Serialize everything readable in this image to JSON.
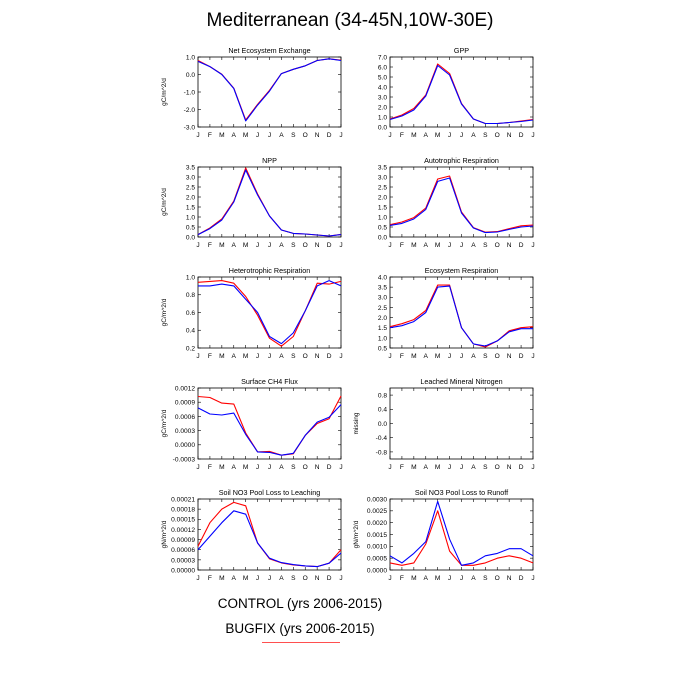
{
  "title": "Mediterranean (34-45N,10W-30E)",
  "legend": {
    "control_label": "CONTROL (yrs 2006-2015)",
    "bugfix_label": "BUGFIX (yrs 2006-2015)"
  },
  "colors": {
    "control": "#0000ff",
    "bugfix": "#ff0000",
    "legend_swatch": "#ff4f4f"
  },
  "x_tick_labels": [
    "J",
    "F",
    "M",
    "A",
    "M",
    "J",
    "J",
    "A",
    "S",
    "O",
    "N",
    "D",
    "J"
  ],
  "chart_data": [
    {
      "type": "line",
      "title": "Net Ecosystem Exchange",
      "ylabel": "gC/m^2/d",
      "ylim": [
        -3.0,
        1.0
      ],
      "yticks": [
        "1.0",
        "0.0",
        "-1.0",
        "-2.0",
        "-3.0"
      ],
      "ytick_values": [
        1.0,
        0.0,
        -1.0,
        -2.0,
        -3.0
      ],
      "series": [
        {
          "key": "control",
          "values": [
            0.75,
            0.45,
            0.0,
            -0.8,
            -2.65,
            -1.75,
            -0.95,
            0.05,
            0.3,
            0.5,
            0.8,
            0.9,
            0.8
          ]
        },
        {
          "key": "bugfix",
          "values": [
            0.8,
            0.45,
            0.02,
            -0.78,
            -2.6,
            -1.7,
            -0.9,
            0.05,
            0.3,
            0.5,
            0.8,
            0.9,
            0.82
          ]
        }
      ]
    },
    {
      "type": "line",
      "title": "GPP",
      "ylabel": "",
      "ylim": [
        0.0,
        7.0
      ],
      "yticks": [
        "7.0",
        "6.0",
        "5.0",
        "4.0",
        "3.0",
        "2.0",
        "1.0",
        "0.0"
      ],
      "ytick_values": [
        7,
        6,
        5,
        4,
        3,
        2,
        1,
        0
      ],
      "series": [
        {
          "key": "control",
          "values": [
            0.75,
            1.1,
            1.7,
            3.1,
            6.15,
            5.2,
            2.3,
            0.8,
            0.35,
            0.35,
            0.45,
            0.55,
            0.7
          ]
        },
        {
          "key": "bugfix",
          "values": [
            0.8,
            1.2,
            1.85,
            3.2,
            6.3,
            5.35,
            2.35,
            0.8,
            0.35,
            0.35,
            0.45,
            0.6,
            0.75
          ]
        }
      ]
    },
    {
      "type": "line",
      "title": "NPP",
      "ylabel": "gC/m^2/d",
      "ylim": [
        0.0,
        3.5
      ],
      "yticks": [
        "3.5",
        "3.0",
        "2.5",
        "2.0",
        "1.5",
        "1.0",
        "0.5",
        "0.0"
      ],
      "ytick_values": [
        3.5,
        3.0,
        2.5,
        2.0,
        1.5,
        1.0,
        0.5,
        0.0
      ],
      "series": [
        {
          "key": "control",
          "values": [
            0.12,
            0.42,
            0.85,
            1.75,
            3.35,
            2.1,
            1.05,
            0.35,
            0.18,
            0.15,
            0.1,
            0.05,
            0.12
          ]
        },
        {
          "key": "bugfix",
          "values": [
            0.12,
            0.45,
            0.9,
            1.8,
            3.45,
            2.15,
            1.05,
            0.35,
            0.18,
            0.15,
            0.1,
            0.05,
            0.13
          ]
        }
      ]
    },
    {
      "type": "line",
      "title": "Autotrophic Respiration",
      "ylabel": "",
      "ylim": [
        0.0,
        3.5
      ],
      "yticks": [
        "3.5",
        "3.0",
        "2.5",
        "2.0",
        "1.5",
        "1.0",
        "0.5",
        "0.0"
      ],
      "ytick_values": [
        3.5,
        3.0,
        2.5,
        2.0,
        1.5,
        1.0,
        0.5,
        0.0
      ],
      "series": [
        {
          "key": "control",
          "values": [
            0.58,
            0.68,
            0.9,
            1.38,
            2.78,
            2.95,
            1.2,
            0.45,
            0.22,
            0.25,
            0.38,
            0.5,
            0.55
          ]
        },
        {
          "key": "bugfix",
          "values": [
            0.62,
            0.75,
            0.97,
            1.45,
            2.9,
            3.05,
            1.25,
            0.47,
            0.24,
            0.27,
            0.42,
            0.56,
            0.6
          ]
        }
      ]
    },
    {
      "type": "line",
      "title": "Heterotrophic Respiration",
      "ylabel": "gC/m^2/d",
      "ylim": [
        0.2,
        1.0
      ],
      "yticks": [
        "1.0",
        "0.8",
        "0.6",
        "0.4",
        "0.2"
      ],
      "ytick_values": [
        1.0,
        0.8,
        0.6,
        0.4,
        0.2
      ],
      "series": [
        {
          "key": "control",
          "values": [
            0.9,
            0.9,
            0.92,
            0.9,
            0.75,
            0.6,
            0.33,
            0.25,
            0.37,
            0.62,
            0.9,
            0.96,
            0.9
          ]
        },
        {
          "key": "bugfix",
          "values": [
            0.94,
            0.95,
            0.96,
            0.93,
            0.78,
            0.57,
            0.31,
            0.22,
            0.33,
            0.62,
            0.93,
            0.92,
            0.95
          ]
        }
      ]
    },
    {
      "type": "line",
      "title": "Ecosystem Respiration",
      "ylabel": "",
      "ylim": [
        0.5,
        4.0
      ],
      "yticks": [
        "4.0",
        "3.5",
        "3.0",
        "2.5",
        "2.0",
        "1.5",
        "1.0",
        "0.5"
      ],
      "ytick_values": [
        4.0,
        3.5,
        3.0,
        2.5,
        2.0,
        1.5,
        1.0,
        0.5
      ],
      "series": [
        {
          "key": "control",
          "values": [
            1.5,
            1.6,
            1.8,
            2.25,
            3.5,
            3.55,
            1.5,
            0.7,
            0.6,
            0.85,
            1.3,
            1.45,
            1.45
          ]
        },
        {
          "key": "bugfix",
          "values": [
            1.55,
            1.7,
            1.9,
            2.35,
            3.6,
            3.6,
            1.5,
            0.7,
            0.55,
            0.85,
            1.35,
            1.5,
            1.55
          ]
        }
      ]
    },
    {
      "type": "line",
      "title": "Surface CH4 Flux",
      "ylabel": "gC/m^2/d",
      "ylim": [
        -0.0003,
        0.0012
      ],
      "yticks": [
        "0.0012",
        "0.0009",
        "0.0006",
        "0.0003",
        "0.0000",
        "-0.0003"
      ],
      "ytick_values": [
        0.0012,
        0.0009,
        0.0006,
        0.0003,
        0.0,
        -0.0003
      ],
      "series": [
        {
          "key": "control",
          "values": [
            0.00078,
            0.00065,
            0.00063,
            0.00067,
            0.00022,
            -0.00015,
            -0.00016,
            -0.00022,
            -0.00018,
            0.0002,
            0.00048,
            0.00058,
            0.00085
          ]
        },
        {
          "key": "bugfix",
          "values": [
            0.00102,
            0.001,
            0.00088,
            0.00086,
            0.00025,
            -0.00015,
            -0.00014,
            -0.00022,
            -0.00019,
            0.0002,
            0.00045,
            0.00055,
            0.00103
          ]
        }
      ]
    },
    {
      "type": "line",
      "title": "Leached Mineral Nitrogen",
      "ylabel": "missing",
      "ylim": [
        -1.0,
        1.0
      ],
      "yticks": [
        "0.8",
        "0.4",
        "0.0",
        "-0.4",
        "-0.8"
      ],
      "ytick_values": [
        0.8,
        0.4,
        0.0,
        -0.4,
        -0.8
      ],
      "series": []
    },
    {
      "type": "line",
      "title": "Soil NO3 Pool Loss to Leaching",
      "ylabel": "gN/m^2/d",
      "ylim": [
        0.0,
        0.00021
      ],
      "yticks": [
        "0.00021",
        "0.00018",
        "0.00015",
        "0.00012",
        "0.00009",
        "0.00006",
        "0.00003",
        "0.00000"
      ],
      "ytick_values": [
        0.00021,
        0.00018,
        0.00015,
        0.00012,
        9e-05,
        6e-05,
        3e-05,
        0.0
      ],
      "series": [
        {
          "key": "control",
          "values": [
            6e-05,
            0.0001,
            0.00014,
            0.000175,
            0.000165,
            8e-05,
            3.5e-05,
            2.2e-05,
            1.6e-05,
            1.2e-05,
            1e-05,
            2e-05,
            5e-05
          ]
        },
        {
          "key": "bugfix",
          "values": [
            7e-05,
            0.00014,
            0.00018,
            0.0002,
            0.00019,
            8e-05,
            3.3e-05,
            2.1e-05,
            1.5e-05,
            1.2e-05,
            1e-05,
            2e-05,
            6e-05
          ]
        }
      ]
    },
    {
      "type": "line",
      "title": "Soil NO3 Pool Loss to Runoff",
      "ylabel": "gN/m^2/d",
      "ylim": [
        0.0,
        0.003
      ],
      "yticks": [
        "0.0030",
        "0.0025",
        "0.0020",
        "0.0015",
        "0.0010",
        "0.0005",
        "0.0000"
      ],
      "ytick_values": [
        0.003,
        0.0025,
        0.002,
        0.0015,
        0.001,
        0.0005,
        0.0
      ],
      "series": [
        {
          "key": "control",
          "values": [
            0.0006,
            0.0003,
            0.0007,
            0.0012,
            0.0029,
            0.0013,
            0.0002,
            0.0003,
            0.0006,
            0.0007,
            0.0009,
            0.0009,
            0.0006
          ]
        },
        {
          "key": "bugfix",
          "values": [
            0.0003,
            0.0002,
            0.0003,
            0.0011,
            0.0025,
            0.0008,
            0.0002,
            0.0002,
            0.0003,
            0.0005,
            0.0006,
            0.0005,
            0.0003
          ]
        }
      ]
    }
  ]
}
